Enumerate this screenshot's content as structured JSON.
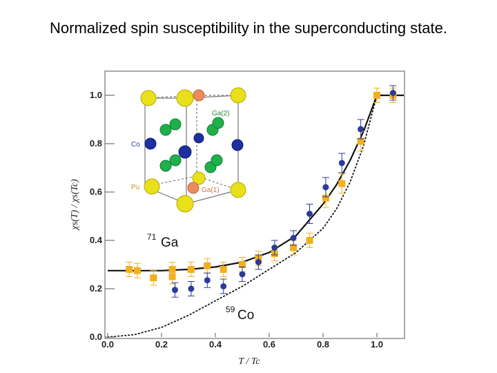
{
  "slide": {
    "title": "Normalized spin susceptibility in the superconducting state."
  },
  "chart_data": {
    "type": "scatter",
    "xlabel": "T / Tc",
    "ylabel": "χs(T) / χs(Tc)",
    "xlim": [
      0,
      1.1
    ],
    "ylim": [
      0,
      1.1
    ],
    "x_ticks": [
      "0.0",
      "0.2",
      "0.4",
      "0.6",
      "0.8",
      "1.0"
    ],
    "y_ticks": [
      "0.0",
      "0.2",
      "0.4",
      "0.6",
      "0.8",
      "1.0"
    ],
    "annotations": {
      "ga_label": {
        "sup": "71",
        "text": "Ga"
      },
      "co_label": {
        "sup": "59",
        "text": "Co"
      }
    },
    "inset_labels": [
      "Ga(2)",
      "Co",
      "Pu",
      "Ga(1)"
    ],
    "series": [
      {
        "marker": "square",
        "color": "#f2b01e",
        "points": [
          {
            "x": 0.08,
            "y": 0.28,
            "err": 0.03
          },
          {
            "x": 0.11,
            "y": 0.275,
            "err": 0.03
          },
          {
            "x": 0.17,
            "y": 0.245,
            "err": 0.03
          },
          {
            "x": 0.24,
            "y": 0.25,
            "err": 0.03
          },
          {
            "x": 0.24,
            "y": 0.28,
            "err": 0.03
          },
          {
            "x": 0.31,
            "y": 0.28,
            "err": 0.03
          },
          {
            "x": 0.37,
            "y": 0.295,
            "err": 0.03
          },
          {
            "x": 0.43,
            "y": 0.28,
            "err": 0.03
          },
          {
            "x": 0.5,
            "y": 0.3,
            "err": 0.03
          },
          {
            "x": 0.56,
            "y": 0.325,
            "err": 0.03
          },
          {
            "x": 0.62,
            "y": 0.345,
            "err": 0.03
          },
          {
            "x": 0.69,
            "y": 0.37,
            "err": 0.03
          },
          {
            "x": 0.75,
            "y": 0.4,
            "err": 0.03
          },
          {
            "x": 0.81,
            "y": 0.575,
            "err": 0.04
          },
          {
            "x": 0.87,
            "y": 0.635,
            "err": 0.04
          },
          {
            "x": 0.94,
            "y": 0.81,
            "err": 0.04
          },
          {
            "x": 1.0,
            "y": 1.0,
            "err": 0.03
          },
          {
            "x": 1.06,
            "y": 1.0,
            "err": 0.03
          }
        ]
      },
      {
        "marker": "circle",
        "color": "#2b3a9c",
        "points": [
          {
            "x": 0.25,
            "y": 0.195,
            "err": 0.03
          },
          {
            "x": 0.31,
            "y": 0.2,
            "err": 0.03
          },
          {
            "x": 0.37,
            "y": 0.235,
            "err": 0.03
          },
          {
            "x": 0.43,
            "y": 0.21,
            "err": 0.03
          },
          {
            "x": 0.5,
            "y": 0.26,
            "err": 0.03
          },
          {
            "x": 0.56,
            "y": 0.31,
            "err": 0.03
          },
          {
            "x": 0.62,
            "y": 0.37,
            "err": 0.03
          },
          {
            "x": 0.69,
            "y": 0.41,
            "err": 0.03
          },
          {
            "x": 0.75,
            "y": 0.51,
            "err": 0.04
          },
          {
            "x": 0.81,
            "y": 0.62,
            "err": 0.04
          },
          {
            "x": 0.87,
            "y": 0.72,
            "err": 0.04
          },
          {
            "x": 0.94,
            "y": 0.86,
            "err": 0.04
          },
          {
            "x": 1.06,
            "y": 1.01,
            "err": 0.03
          }
        ]
      }
    ],
    "curves": [
      {
        "style": "solid",
        "x": [
          0.0,
          0.1,
          0.2,
          0.3,
          0.4,
          0.5,
          0.6,
          0.7,
          0.8,
          0.85,
          0.9,
          0.95,
          1.0,
          1.1
        ],
        "y": [
          0.275,
          0.275,
          0.275,
          0.28,
          0.29,
          0.31,
          0.35,
          0.42,
          0.55,
          0.63,
          0.73,
          0.85,
          1.0,
          1.0
        ]
      },
      {
        "style": "dotted",
        "x": [
          0.0,
          0.1,
          0.2,
          0.3,
          0.4,
          0.5,
          0.6,
          0.7,
          0.8,
          0.85,
          0.9,
          0.95,
          1.0,
          1.1
        ],
        "y": [
          0.0,
          0.01,
          0.04,
          0.09,
          0.15,
          0.21,
          0.28,
          0.35,
          0.45,
          0.53,
          0.64,
          0.79,
          1.0,
          1.0
        ]
      }
    ],
    "grid": false,
    "legend": "none"
  }
}
